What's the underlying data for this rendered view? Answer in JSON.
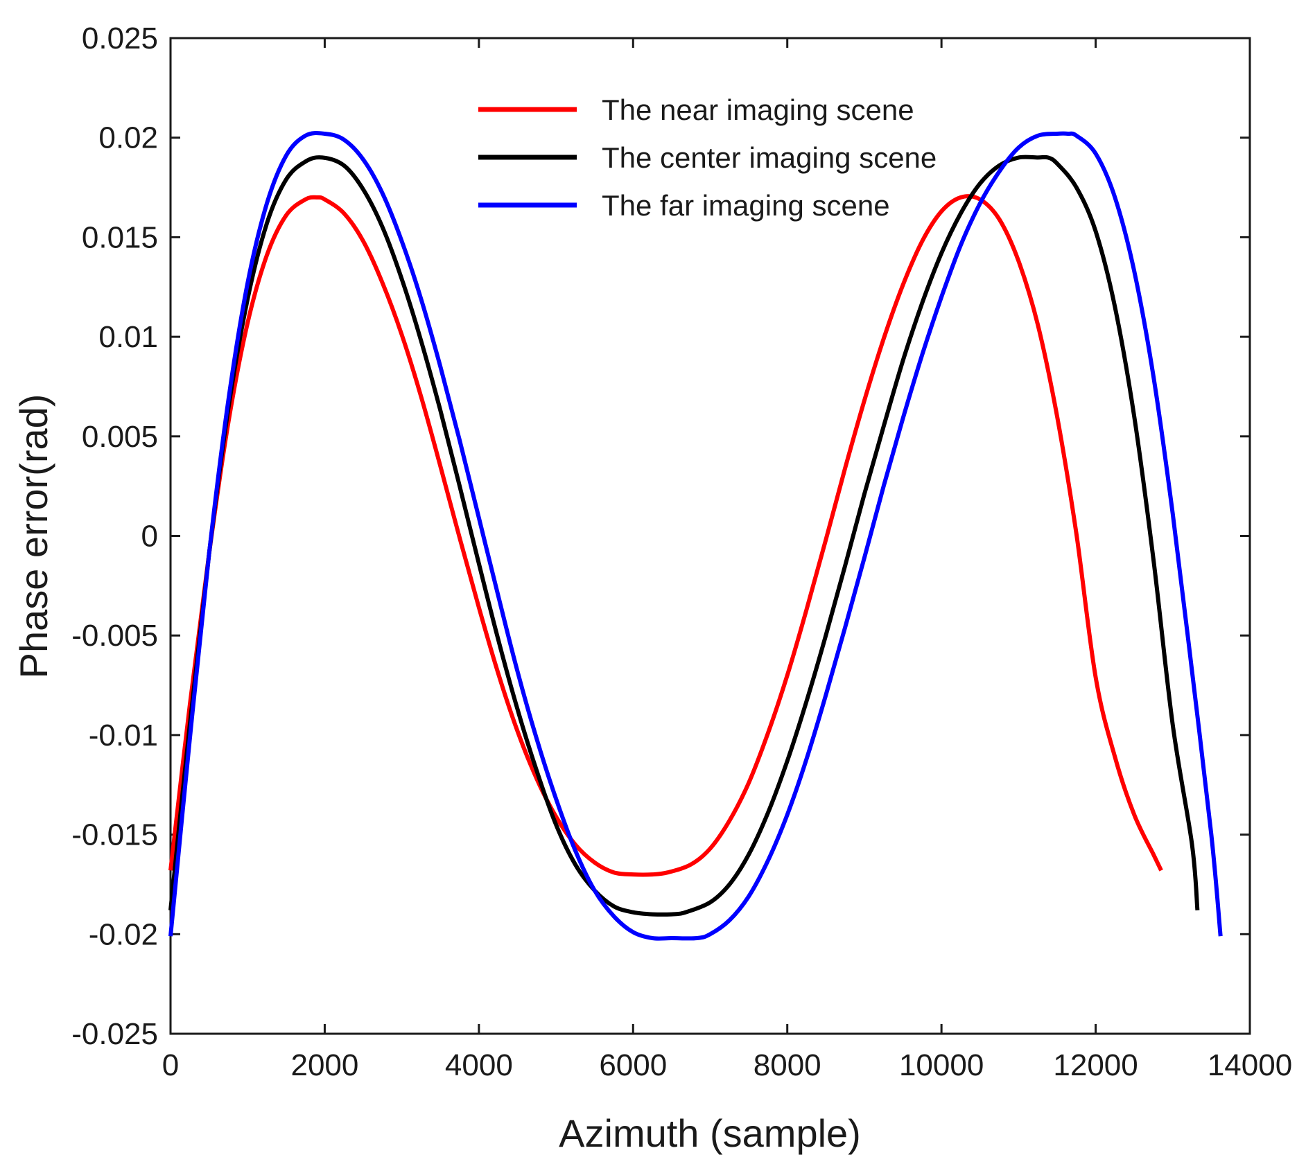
{
  "chart_data": {
    "type": "line",
    "title": "",
    "xlabel": "Azimuth (sample)",
    "ylabel": "Phase error(rad)",
    "xlim": [
      0,
      14000
    ],
    "ylim": [
      -0.025,
      0.025
    ],
    "x_ticks": [
      0,
      2000,
      4000,
      6000,
      8000,
      10000,
      12000,
      14000
    ],
    "x_tick_labels": [
      "0",
      "2000",
      "4000",
      "6000",
      "8000",
      "10000",
      "12000",
      "14000"
    ],
    "y_ticks": [
      0.025,
      0.02,
      0.015,
      0.01,
      0.005,
      0,
      -0.005,
      -0.01,
      -0.015,
      -0.02,
      -0.025
    ],
    "y_tick_labels": [
      "0.025",
      "0.02",
      "0.015",
      "0.01",
      "0.005",
      "0",
      "-0.005",
      "-0.01",
      "-0.015",
      "-0.02",
      "-0.025"
    ],
    "grid": false,
    "legend_position": "top-center",
    "series": [
      {
        "name": "The near imaging scene",
        "color": "#ff0000",
        "x": [
          0,
          250,
          500,
          750,
          1000,
          1250,
          1500,
          1750,
          1900,
          2000,
          2250,
          2500,
          2750,
          3000,
          3250,
          3500,
          3750,
          4000,
          4250,
          4500,
          4750,
          5000,
          5250,
          5500,
          5750,
          6000,
          6250,
          6450,
          6750,
          7000,
          7250,
          7500,
          7750,
          8000,
          8250,
          8500,
          8750,
          9000,
          9250,
          9500,
          9750,
          10000,
          10250,
          10500,
          10750,
          11000,
          11250,
          11500,
          11750,
          12000,
          12250,
          12500,
          12750,
          12850
        ],
        "y": [
          -0.0168,
          -0.0085,
          -0.0009,
          0.0057,
          0.0107,
          0.0141,
          0.0161,
          0.0169,
          0.017,
          0.0169,
          0.0162,
          0.0148,
          0.0127,
          0.0101,
          0.007,
          0.0035,
          -0.0001,
          -0.0036,
          -0.0069,
          -0.0098,
          -0.0122,
          -0.0141,
          -0.0155,
          -0.0164,
          -0.0169,
          -0.017,
          -0.017,
          -0.0169,
          -0.0165,
          -0.0157,
          -0.0143,
          -0.0124,
          -0.0099,
          -0.007,
          -0.0037,
          -0.0002,
          0.0034,
          0.0068,
          0.0099,
          0.0126,
          0.0148,
          0.0163,
          0.017,
          0.0169,
          0.0159,
          0.0138,
          0.0106,
          0.006,
          0.0001,
          -0.0071,
          -0.0111,
          -0.014,
          -0.016,
          -0.0168
        ]
      },
      {
        "name": "The center imaging scene",
        "color": "#000000",
        "x": [
          0,
          250,
          500,
          750,
          1000,
          1250,
          1500,
          1750,
          1970,
          2250,
          2500,
          2750,
          3000,
          3250,
          3500,
          3750,
          4000,
          4250,
          4500,
          4750,
          5000,
          5250,
          5500,
          5750,
          6000,
          6250,
          6500,
          6680,
          7000,
          7250,
          7500,
          7750,
          8000,
          8250,
          8500,
          8750,
          9000,
          9250,
          9500,
          9750,
          10000,
          10250,
          10500,
          10750,
          11000,
          11250,
          11380,
          11500,
          11750,
          12000,
          12250,
          12500,
          12750,
          13000,
          13250,
          13320
        ],
        "y": [
          -0.0188,
          -0.0095,
          -0.0009,
          0.0064,
          0.0119,
          0.0157,
          0.0179,
          0.0188,
          0.019,
          0.0186,
          0.0174,
          0.0155,
          0.0129,
          0.0098,
          0.0063,
          0.0025,
          -0.0014,
          -0.0052,
          -0.0087,
          -0.0118,
          -0.0145,
          -0.0165,
          -0.0178,
          -0.0186,
          -0.0189,
          -0.019,
          -0.019,
          -0.0189,
          -0.0184,
          -0.0175,
          -0.016,
          -0.0139,
          -0.0113,
          -0.0083,
          -0.005,
          -0.0015,
          0.0021,
          0.0055,
          0.0088,
          0.0117,
          0.0142,
          0.0162,
          0.0177,
          0.0186,
          0.019,
          0.019,
          0.019,
          0.0187,
          0.0175,
          0.0153,
          0.0115,
          0.006,
          -0.0012,
          -0.0095,
          -0.0155,
          -0.0188
        ]
      },
      {
        "name": "The far imaging scene",
        "color": "#0000ff",
        "x": [
          0,
          250,
          500,
          750,
          1000,
          1250,
          1500,
          1750,
          2000,
          2250,
          2500,
          2750,
          3000,
          3250,
          3500,
          3750,
          4000,
          4250,
          4500,
          4750,
          5000,
          5250,
          5500,
          5750,
          6000,
          6250,
          6500,
          6830,
          7000,
          7250,
          7500,
          7750,
          8000,
          8250,
          8500,
          8750,
          9000,
          9250,
          9500,
          9750,
          10000,
          10250,
          10500,
          10750,
          11000,
          11250,
          11500,
          11640,
          11750,
          12000,
          12250,
          12500,
          12750,
          13000,
          13250,
          13500,
          13620
        ],
        "y": [
          -0.0201,
          -0.0102,
          -0.0009,
          0.0068,
          0.0127,
          0.0167,
          0.0191,
          0.0201,
          0.0202,
          0.0199,
          0.0189,
          0.0172,
          0.0148,
          0.0119,
          0.0085,
          0.0048,
          0.0009,
          -0.003,
          -0.0068,
          -0.0102,
          -0.0132,
          -0.0158,
          -0.0178,
          -0.0191,
          -0.0199,
          -0.0202,
          -0.0202,
          -0.0202,
          -0.02,
          -0.0193,
          -0.0181,
          -0.0163,
          -0.014,
          -0.0112,
          -0.008,
          -0.0046,
          -0.0011,
          0.0025,
          0.0059,
          0.0091,
          0.012,
          0.0146,
          0.0167,
          0.0183,
          0.0195,
          0.0201,
          0.0202,
          0.0202,
          0.0201,
          0.0192,
          0.017,
          0.0133,
          0.008,
          0.0011,
          -0.0068,
          -0.015,
          -0.0201
        ]
      }
    ]
  }
}
